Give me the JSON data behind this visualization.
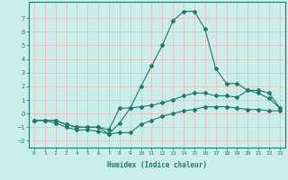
{
  "xlabel": "Humidex (Indice chaleur)",
  "xlim": [
    -0.5,
    23.5
  ],
  "ylim": [
    -2.5,
    8.2
  ],
  "yticks": [
    -2,
    -1,
    0,
    1,
    2,
    3,
    4,
    5,
    6,
    7
  ],
  "xticks": [
    0,
    1,
    2,
    3,
    4,
    5,
    6,
    7,
    8,
    9,
    10,
    11,
    12,
    13,
    14,
    15,
    16,
    17,
    18,
    19,
    20,
    21,
    22,
    23
  ],
  "line_color": "#1a7a6e",
  "bg_color": "#cceee8",
  "grid_color": "#e8b8b8",
  "line1_x": [
    0,
    1,
    2,
    3,
    4,
    5,
    6,
    7,
    8,
    9,
    10,
    11,
    12,
    13,
    14,
    15,
    16,
    17,
    18,
    19,
    20,
    21,
    22,
    23
  ],
  "line1_y": [
    -0.5,
    -0.5,
    -0.7,
    -1.0,
    -1.2,
    -1.2,
    -1.3,
    -1.5,
    -0.7,
    0.4,
    2.0,
    3.5,
    5.0,
    6.8,
    7.5,
    7.5,
    6.2,
    3.3,
    2.2,
    2.2,
    1.7,
    1.5,
    1.1,
    0.4
  ],
  "line2_x": [
    0,
    1,
    2,
    3,
    4,
    5,
    6,
    7,
    8,
    9,
    10,
    11,
    12,
    13,
    14,
    15,
    16,
    17,
    18,
    19,
    20,
    21,
    22,
    23
  ],
  "line2_y": [
    -0.5,
    -0.5,
    -0.5,
    -0.8,
    -1.0,
    -1.0,
    -1.0,
    -1.2,
    0.4,
    0.4,
    0.5,
    0.6,
    0.8,
    1.0,
    1.3,
    1.5,
    1.5,
    1.3,
    1.3,
    1.2,
    1.7,
    1.7,
    1.5,
    0.4
  ],
  "line3_x": [
    0,
    1,
    2,
    3,
    4,
    5,
    6,
    7,
    8,
    9,
    10,
    11,
    12,
    13,
    14,
    15,
    16,
    17,
    18,
    19,
    20,
    21,
    22,
    23
  ],
  "line3_y": [
    -0.5,
    -0.5,
    -0.5,
    -0.8,
    -1.0,
    -1.0,
    -1.0,
    -1.5,
    -1.4,
    -1.4,
    -0.8,
    -0.5,
    -0.2,
    0.0,
    0.2,
    0.3,
    0.5,
    0.5,
    0.5,
    0.4,
    0.3,
    0.3,
    0.2,
    0.2
  ]
}
